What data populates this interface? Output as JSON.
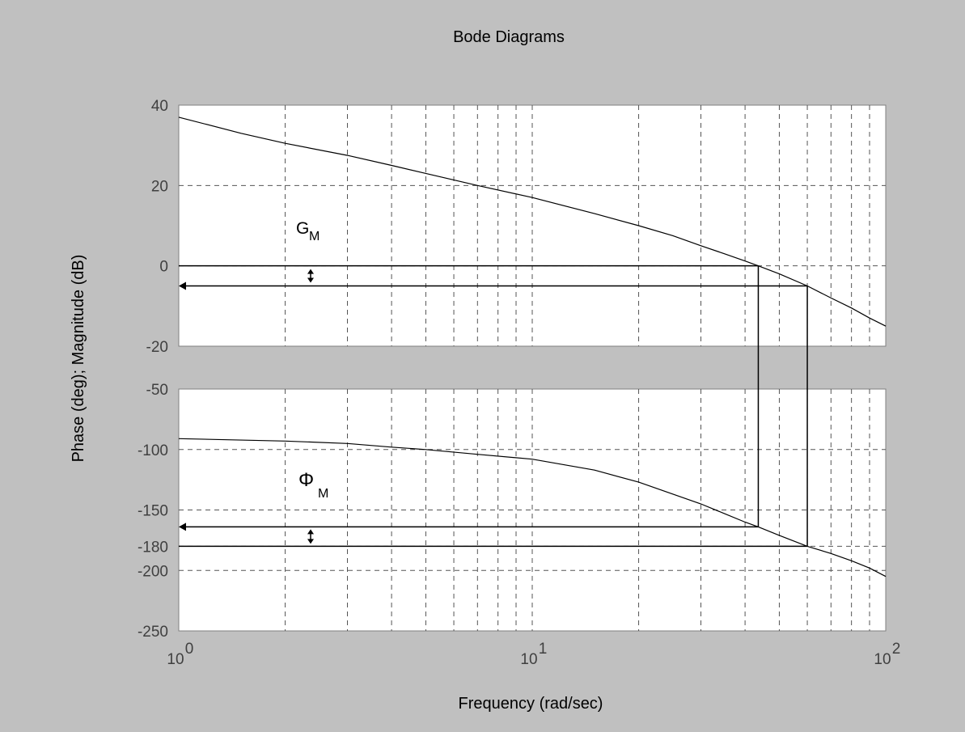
{
  "chart_data": {
    "type": "line",
    "title": "Bode Diagrams",
    "xlabel": "Frequency (rad/sec)",
    "ylabel": "Phase (deg); Magnitude (dB)",
    "x_scale": "log",
    "xlim": [
      1,
      100
    ],
    "x_ticks": [
      {
        "base": "10",
        "exp": "0"
      },
      {
        "base": "10",
        "exp": "1"
      },
      {
        "base": "10",
        "exp": "2"
      }
    ],
    "grid": true,
    "colors": {
      "background": "#c0c0c0",
      "plot_area": "#ffffff",
      "curve": "#000000",
      "grid": "#555555"
    },
    "panels": [
      {
        "name": "magnitude",
        "ylim": [
          -20,
          40
        ],
        "y_ticks": [
          "40",
          "20",
          "0",
          "-20"
        ],
        "series": [
          {
            "x": [
              1,
              1.5,
              2,
              3,
              4,
              5,
              7,
              10,
              15,
              20,
              25,
              30,
              35,
              40,
              43.6,
              50,
              60,
              70,
              80,
              90,
              100
            ],
            "values": [
              37,
              33,
              30.5,
              27.5,
              25,
              23,
              20,
              17,
              13,
              10,
              7.5,
              5,
              3,
              1.2,
              0,
              -2,
              -5,
              -8,
              -10.5,
              -13,
              -15
            ]
          }
        ]
      },
      {
        "name": "phase",
        "ylim": [
          -250,
          -50
        ],
        "y_ticks": [
          "-50",
          "-100",
          "-150",
          "-180",
          "-200",
          "-250"
        ],
        "series": [
          {
            "x": [
              1,
              2,
              3,
              4,
              5,
              7,
              10,
              15,
              20,
              30,
              40,
              43.6,
              50,
              60,
              70,
              80,
              90,
              100
            ],
            "values": [
              -91,
              -93,
              -95,
              -98,
              -100,
              -104,
              -108,
              -117,
              -127,
              -145,
              -160,
              -164,
              -171,
              -180,
              -186,
              -192,
              -198,
              -205
            ]
          }
        ]
      }
    ],
    "annotations": {
      "gain_margin": {
        "label": "G",
        "subscript": "M",
        "frequency": 60,
        "magnitude_db": -5
      },
      "phase_margin": {
        "label": "Φ",
        "subscript": "M",
        "frequency": 43.6,
        "phase_deg": -164
      },
      "crossover_frequency": 43.6,
      "phase_crossover_frequency": 60,
      "reference_magnitude_db": 0,
      "reference_phase_deg": -180
    }
  }
}
